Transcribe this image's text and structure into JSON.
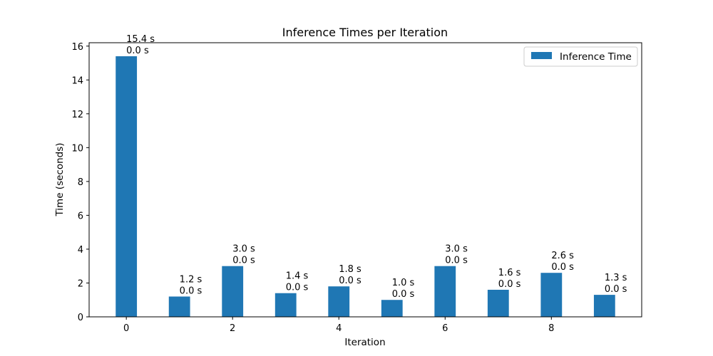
{
  "chart_data": {
    "type": "bar",
    "title": "Inference Times per Iteration",
    "xlabel": "Iteration",
    "ylabel": "Time (seconds)",
    "x": [
      0,
      1,
      2,
      3,
      4,
      5,
      6,
      7,
      8,
      9
    ],
    "series": [
      {
        "name": "Inference Time",
        "values": [
          15.4,
          1.2,
          3.0,
          1.4,
          1.8,
          1.0,
          3.0,
          1.6,
          2.6,
          1.3
        ],
        "color": "#1f77b4"
      }
    ],
    "data_labels": [
      {
        "top": "15.4 s",
        "bottom": "0.0 s"
      },
      {
        "top": "1.2 s",
        "bottom": "0.0 s"
      },
      {
        "top": "3.0 s",
        "bottom": "0.0 s"
      },
      {
        "top": "1.4 s",
        "bottom": "0.0 s"
      },
      {
        "top": "1.8 s",
        "bottom": "0.0 s"
      },
      {
        "top": "1.0 s",
        "bottom": "0.0 s"
      },
      {
        "top": "3.0 s",
        "bottom": "0.0 s"
      },
      {
        "top": "1.6 s",
        "bottom": "0.0 s"
      },
      {
        "top": "2.6 s",
        "bottom": "0.0 s"
      },
      {
        "top": "1.3 s",
        "bottom": "0.0 s"
      }
    ],
    "xlim": [
      -0.7,
      9.7
    ],
    "ylim": [
      0,
      16.2
    ],
    "xticks": [
      "0",
      "2",
      "4",
      "6",
      "8"
    ],
    "yticks": [
      "0",
      "2",
      "4",
      "6",
      "8",
      "10",
      "12",
      "14",
      "16"
    ],
    "grid": false,
    "legend_position": "top-right"
  }
}
